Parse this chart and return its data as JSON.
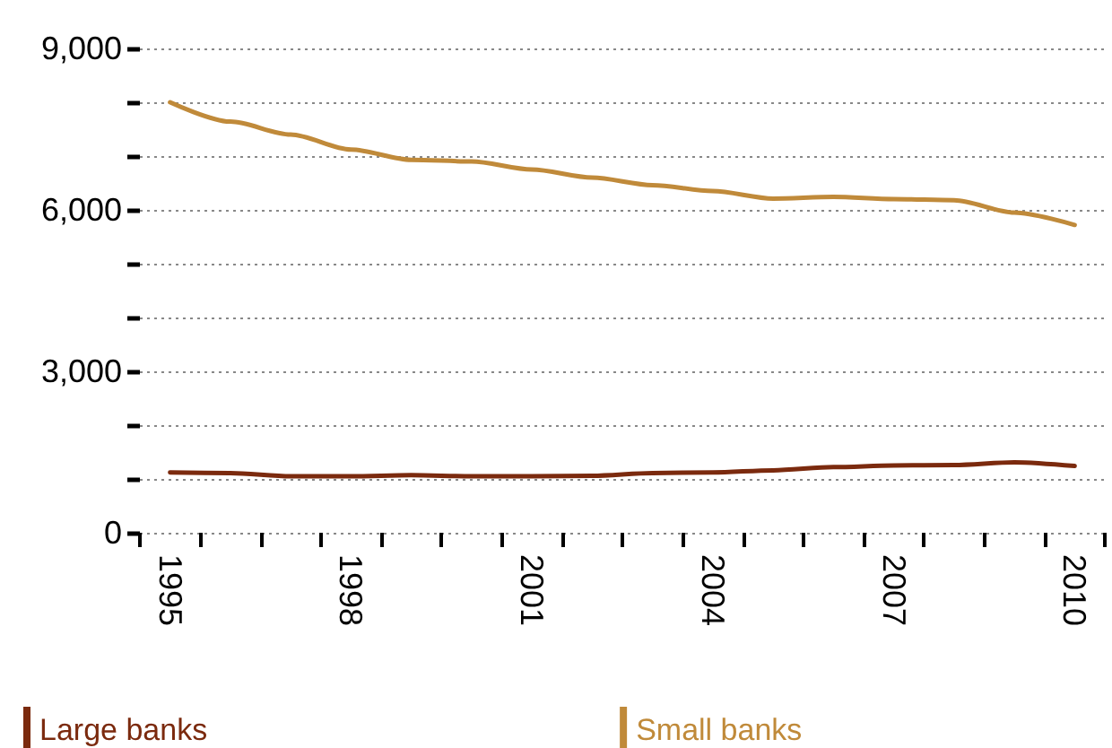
{
  "chart_data": {
    "type": "line",
    "categories": [
      "1995",
      null,
      null,
      "1998",
      null,
      null,
      "2001",
      null,
      null,
      "2004",
      null,
      null,
      "2007",
      null,
      null,
      "2010"
    ],
    "series": [
      {
        "name": "Large banks",
        "color": "#7b2a0e",
        "values": [
          1120,
          1110,
          1050,
          1050,
          1070,
          1050,
          1050,
          1060,
          1110,
          1120,
          1160,
          1220,
          1250,
          1260,
          1310,
          1240
        ]
      },
      {
        "name": "Small banks",
        "color": "#c08a3a",
        "values": [
          8000,
          7640,
          7400,
          7120,
          6930,
          6900,
          6750,
          6600,
          6460,
          6350,
          6210,
          6240,
          6200,
          6180,
          5950,
          5720
        ]
      }
    ],
    "ylim": [
      0,
      9000
    ],
    "yticks": [
      0,
      {
        "value": 1000,
        "label": null
      },
      {
        "value": 2000,
        "label": null
      },
      {
        "value": 3000,
        "label": "3,000"
      },
      {
        "value": 4000,
        "label": null
      },
      {
        "value": 5000,
        "label": null
      },
      {
        "value": 6000,
        "label": "6,000"
      },
      {
        "value": 7000,
        "label": null
      },
      {
        "value": 8000,
        "label": null
      },
      {
        "value": 9000,
        "label": "9,000"
      }
    ],
    "grid": "y",
    "legend": "bottom left",
    "marker": "none",
    "line_style": "solid"
  }
}
